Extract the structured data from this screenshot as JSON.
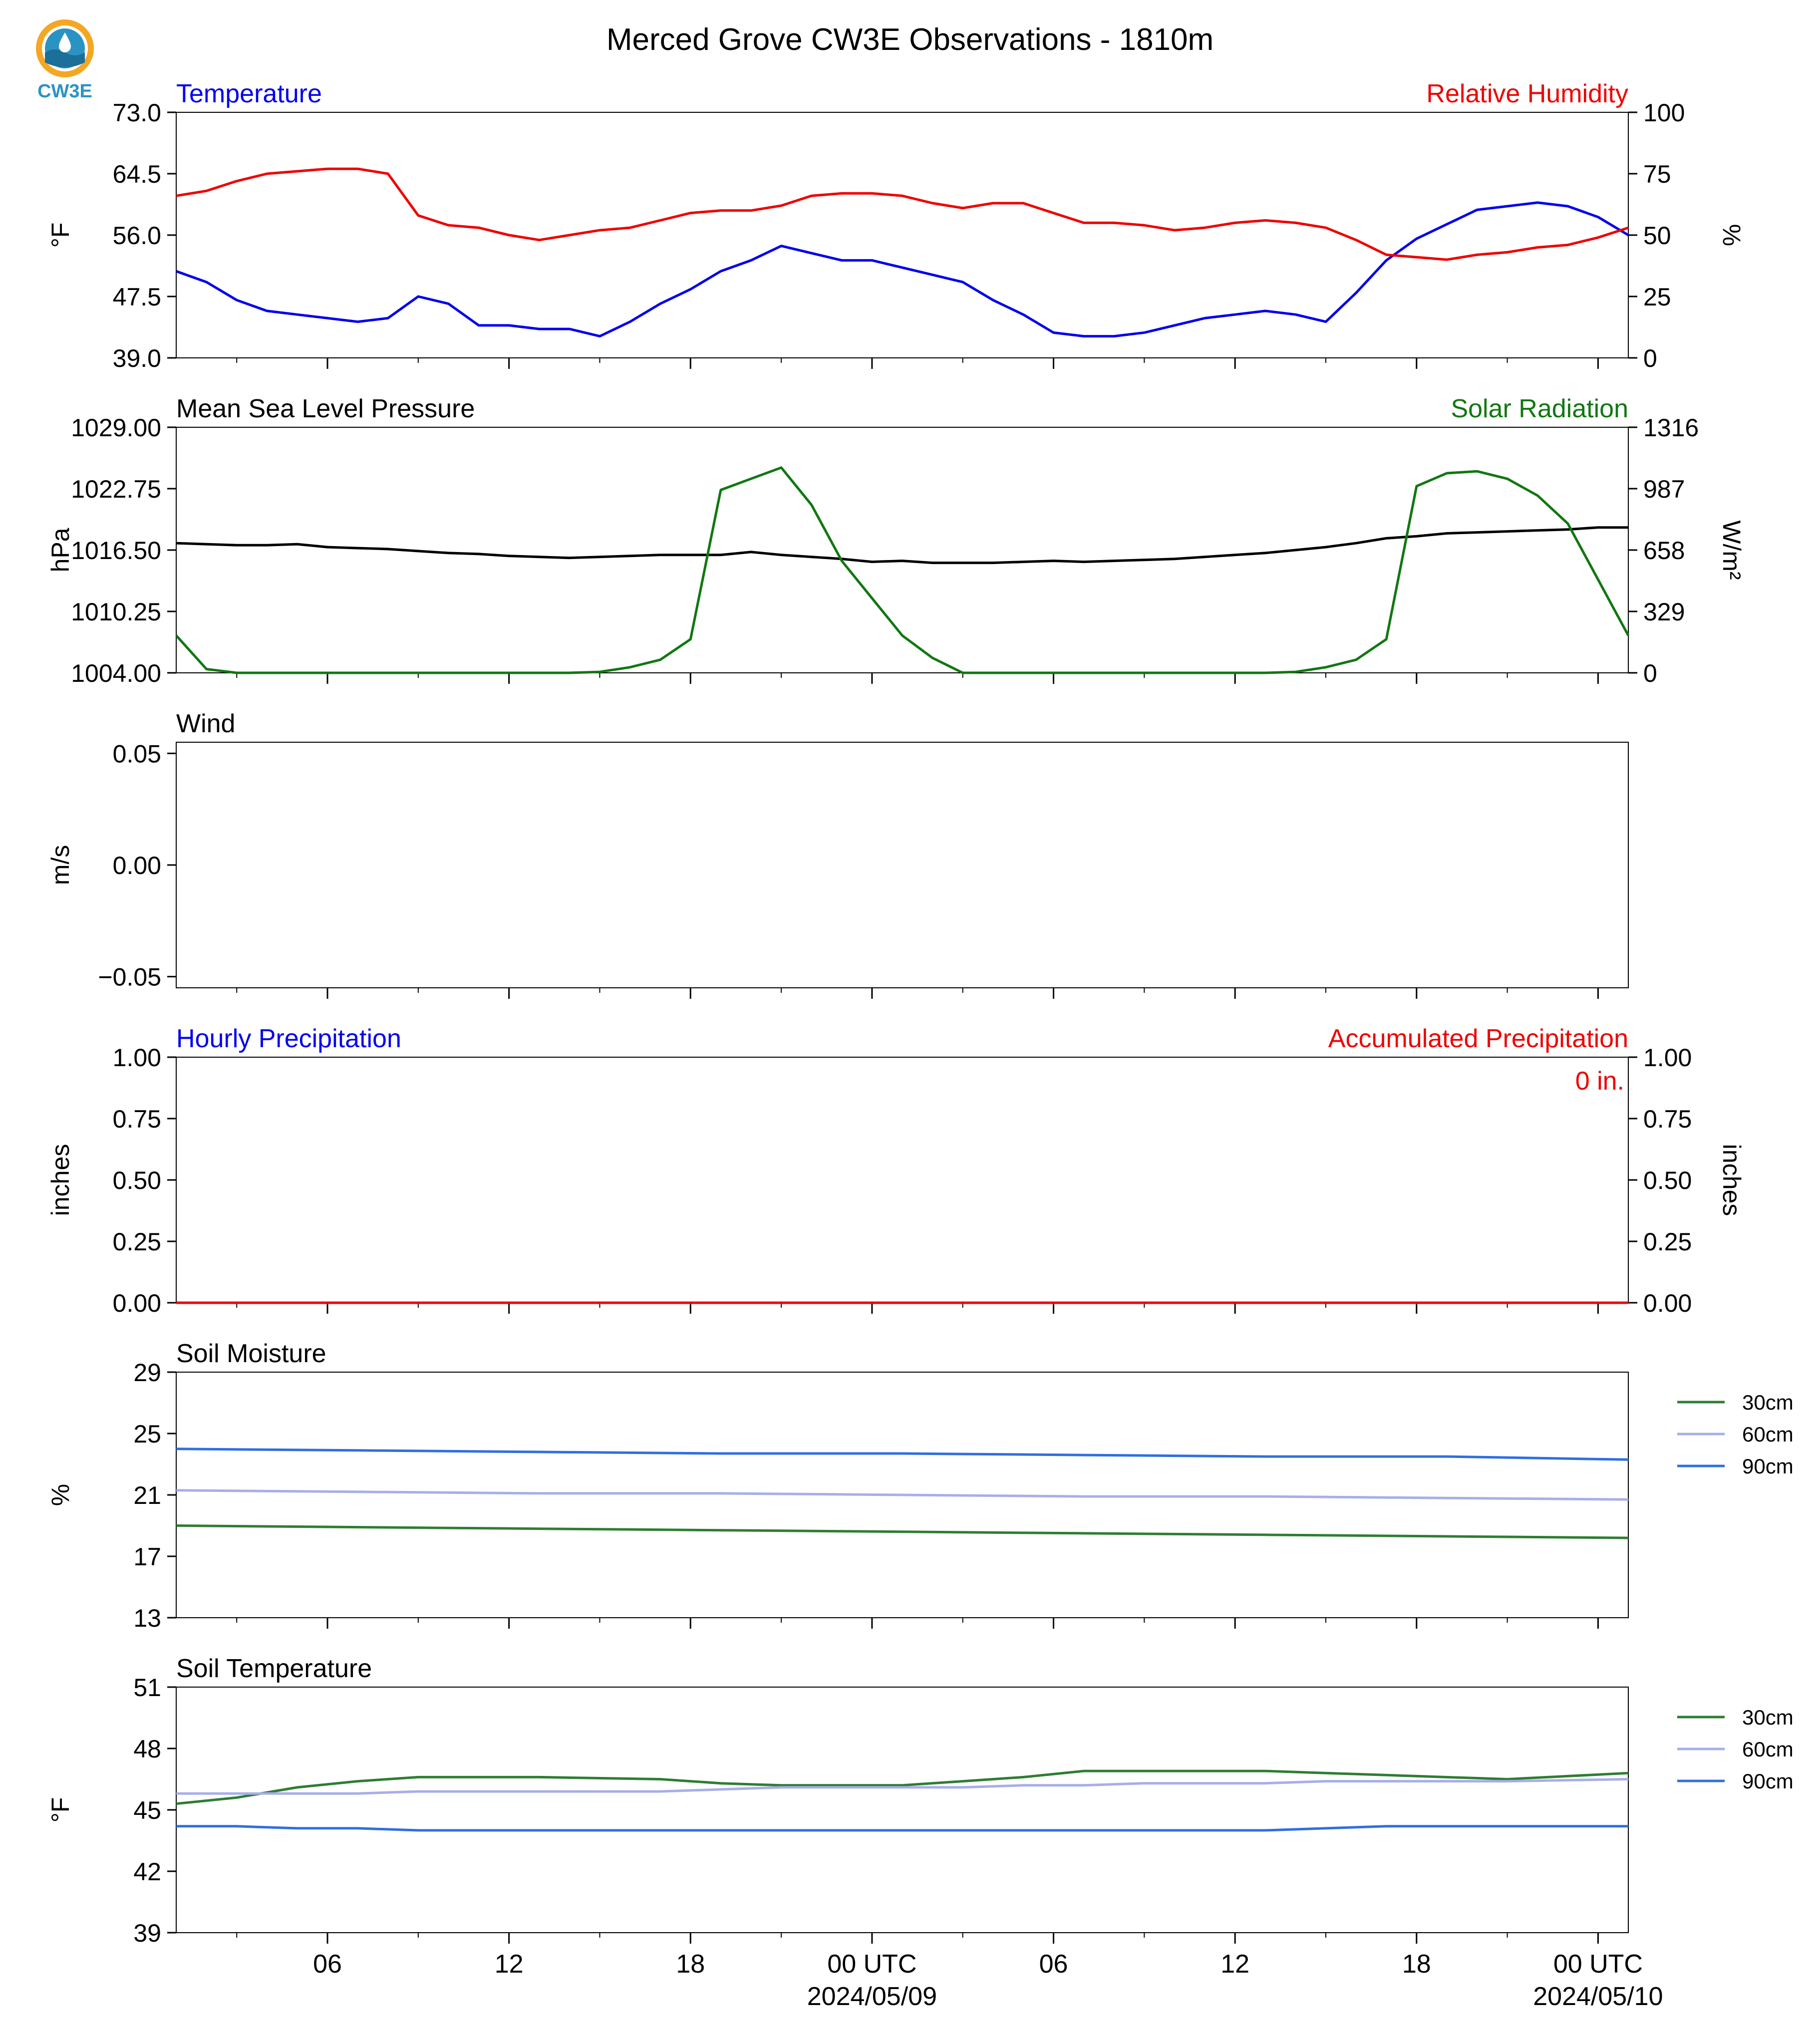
{
  "title": "Merced Grove CW3E Observations - 1810m",
  "logo_text": "CW3E",
  "x_axis": {
    "tick_labels": [
      "06",
      "12",
      "18",
      "00 UTC",
      "06",
      "12",
      "18",
      "00 UTC"
    ],
    "date_labels": [
      "2024/05/09",
      "2024/05/10"
    ],
    "start": "2024-05-08T01:00Z",
    "end": "2024-05-10T01:00Z"
  },
  "colors": {
    "blue": "#0000ee",
    "red": "#ee0000",
    "green": "#117711",
    "black": "#000000",
    "soil30": "#2e7d32",
    "soil60": "#a8aee8",
    "soil90": "#2f6fe0"
  },
  "chart_data": [
    {
      "type": "line",
      "name": "temperature-rh",
      "left_title": "Temperature",
      "right_title": "Relative Humidity",
      "ylabel": "°F",
      "ylabel_right": "%",
      "ylim": [
        39,
        73
      ],
      "yticks": [
        "39.0",
        "47.5",
        "56.0",
        "64.5",
        "73.0"
      ],
      "ylim_right": [
        0,
        100
      ],
      "yticks_right": [
        "0",
        "25",
        "50",
        "75",
        "100"
      ],
      "x_hours": [
        0,
        1,
        2,
        3,
        4,
        5,
        6,
        7,
        8,
        9,
        10,
        11,
        12,
        13,
        14,
        15,
        16,
        17,
        18,
        19,
        20,
        21,
        22,
        23,
        24,
        25,
        26,
        27,
        28,
        29,
        30,
        31,
        32,
        33,
        34,
        35,
        36,
        37,
        38,
        39,
        40,
        41,
        42,
        43,
        44,
        45,
        46,
        47,
        48
      ],
      "series": [
        {
          "label": "Temperature",
          "axis": "left",
          "color": "#0000ee",
          "values": [
            51.0,
            49.5,
            47.0,
            45.5,
            45.0,
            44.5,
            44.0,
            44.5,
            47.5,
            46.5,
            43.5,
            43.5,
            43.0,
            43.0,
            42.0,
            44.0,
            46.5,
            48.5,
            51.0,
            52.5,
            54.5,
            53.5,
            52.5,
            52.5,
            51.5,
            50.5,
            49.5,
            47.0,
            45.0,
            42.5,
            42.0,
            42.0,
            42.5,
            43.5,
            44.5,
            45.0,
            45.5,
            45.0,
            44.0,
            48.0,
            52.5,
            55.5,
            57.5,
            59.5,
            60.0,
            60.5,
            60.0,
            58.5,
            56.0
          ]
        },
        {
          "label": "Relative Humidity",
          "axis": "right",
          "color": "#ee0000",
          "values": [
            66,
            68,
            72,
            75,
            76,
            77,
            77,
            75,
            58,
            54,
            53,
            50,
            48,
            50,
            52,
            53,
            56,
            59,
            60,
            60,
            62,
            66,
            67,
            67,
            66,
            63,
            61,
            63,
            63,
            59,
            55,
            55,
            54,
            52,
            53,
            55,
            56,
            55,
            53,
            48,
            42,
            41,
            40,
            42,
            43,
            45,
            46,
            49,
            53
          ]
        }
      ]
    },
    {
      "type": "line",
      "name": "pressure-solar",
      "left_title": "Mean Sea Level Pressure",
      "right_title": "Solar Radiation",
      "ylabel": "hPa",
      "ylabel_right": "W/m²",
      "ylim": [
        1004.0,
        1029.0
      ],
      "yticks": [
        "1004.00",
        "1010.25",
        "1016.50",
        "1022.75",
        "1029.00"
      ],
      "ylim_right": [
        0,
        1316
      ],
      "yticks_right": [
        "0",
        "329",
        "658",
        "987",
        "1316"
      ],
      "x_hours": [
        0,
        1,
        2,
        3,
        4,
        5,
        6,
        7,
        8,
        9,
        10,
        11,
        12,
        13,
        14,
        15,
        16,
        17,
        18,
        19,
        20,
        21,
        22,
        23,
        24,
        25,
        26,
        27,
        28,
        29,
        30,
        31,
        32,
        33,
        34,
        35,
        36,
        37,
        38,
        39,
        40,
        41,
        42,
        43,
        44,
        45,
        46,
        47,
        48
      ],
      "series": [
        {
          "label": "Mean Sea Level Pressure",
          "axis": "left",
          "color": "#000000",
          "values": [
            1017.2,
            1017.1,
            1017.0,
            1017.0,
            1017.1,
            1016.8,
            1016.7,
            1016.6,
            1016.4,
            1016.2,
            1016.1,
            1015.9,
            1015.8,
            1015.7,
            1015.8,
            1015.9,
            1016.0,
            1016.0,
            1016.0,
            1016.3,
            1016.0,
            1015.8,
            1015.6,
            1015.3,
            1015.4,
            1015.2,
            1015.2,
            1015.2,
            1015.3,
            1015.4,
            1015.3,
            1015.4,
            1015.5,
            1015.6,
            1015.8,
            1016.0,
            1016.2,
            1016.5,
            1016.8,
            1017.2,
            1017.7,
            1017.9,
            1018.2,
            1018.3,
            1018.4,
            1018.5,
            1018.6,
            1018.8,
            1018.8
          ]
        },
        {
          "label": "Solar Radiation",
          "axis": "right",
          "color": "#117711",
          "values": [
            200,
            20,
            0,
            0,
            0,
            0,
            0,
            0,
            0,
            0,
            0,
            0,
            0,
            0,
            5,
            30,
            70,
            180,
            980,
            1040,
            1100,
            900,
            600,
            400,
            200,
            80,
            0,
            0,
            0,
            0,
            0,
            0,
            0,
            0,
            0,
            0,
            0,
            5,
            30,
            70,
            180,
            1000,
            1070,
            1080,
            1040,
            950,
            800,
            500,
            200
          ]
        }
      ]
    },
    {
      "type": "line",
      "name": "wind",
      "left_title": "Wind",
      "ylabel": "m/s",
      "ylim": [
        -0.055,
        0.055
      ],
      "yticks": [
        "−0.05",
        "0.00",
        "0.05"
      ],
      "series": []
    },
    {
      "type": "line",
      "name": "precipitation",
      "left_title": "Hourly Precipitation",
      "right_title": "Accumulated Precipitation",
      "annotation": "0 in.",
      "ylabel": "inches",
      "ylabel_right": "inches",
      "ylim": [
        0,
        1
      ],
      "yticks": [
        "0.00",
        "0.25",
        "0.50",
        "0.75",
        "1.00"
      ],
      "ylim_right": [
        0,
        1
      ],
      "yticks_right": [
        "0.00",
        "0.25",
        "0.50",
        "0.75",
        "1.00"
      ],
      "x_hours": [
        0,
        48
      ],
      "series": [
        {
          "label": "Hourly Precipitation",
          "axis": "left",
          "color": "#0000ee",
          "values": [
            0,
            0
          ]
        },
        {
          "label": "Accumulated Precipitation",
          "axis": "right",
          "color": "#ee0000",
          "values": [
            0,
            0
          ]
        }
      ]
    },
    {
      "type": "line",
      "name": "soil-moisture",
      "left_title": "Soil Moisture",
      "ylabel": "%",
      "ylim": [
        13,
        29
      ],
      "yticks": [
        "13",
        "17",
        "21",
        "25",
        "29"
      ],
      "legend_placement": "right",
      "x_hours": [
        0,
        6,
        12,
        18,
        24,
        30,
        36,
        42,
        48
      ],
      "series": [
        {
          "name": "30cm",
          "color": "#2e7d32",
          "values": [
            19.0,
            18.9,
            18.8,
            18.7,
            18.6,
            18.5,
            18.4,
            18.3,
            18.2
          ]
        },
        {
          "name": "60cm",
          "color": "#a8aee8",
          "values": [
            21.3,
            21.2,
            21.1,
            21.1,
            21.0,
            20.9,
            20.9,
            20.8,
            20.7
          ]
        },
        {
          "name": "90cm",
          "color": "#2f6fe0",
          "values": [
            24.0,
            23.9,
            23.8,
            23.7,
            23.7,
            23.6,
            23.5,
            23.5,
            23.3
          ]
        }
      ]
    },
    {
      "type": "line",
      "name": "soil-temperature",
      "left_title": "Soil Temperature",
      "ylabel": "°F",
      "ylim": [
        39,
        51
      ],
      "yticks": [
        "39",
        "42",
        "45",
        "48",
        "51"
      ],
      "legend_placement": "right",
      "x_hours": [
        0,
        2,
        4,
        6,
        8,
        12,
        16,
        18,
        20,
        24,
        26,
        28,
        30,
        32,
        36,
        38,
        40,
        44,
        48
      ],
      "series": [
        {
          "name": "30cm",
          "color": "#2e7d32",
          "values": [
            45.3,
            45.6,
            46.1,
            46.4,
            46.6,
            46.6,
            46.5,
            46.3,
            46.2,
            46.2,
            46.4,
            46.6,
            46.9,
            46.9,
            46.9,
            46.8,
            46.7,
            46.5,
            46.8
          ]
        },
        {
          "name": "60cm",
          "color": "#a8aee8",
          "values": [
            45.8,
            45.8,
            45.8,
            45.8,
            45.9,
            45.9,
            45.9,
            46.0,
            46.1,
            46.1,
            46.1,
            46.2,
            46.2,
            46.3,
            46.3,
            46.4,
            46.4,
            46.4,
            46.5
          ]
        },
        {
          "name": "90cm",
          "color": "#2f6fe0",
          "values": [
            44.2,
            44.2,
            44.1,
            44.1,
            44.0,
            44.0,
            44.0,
            44.0,
            44.0,
            44.0,
            44.0,
            44.0,
            44.0,
            44.0,
            44.0,
            44.1,
            44.2,
            44.2,
            44.2
          ]
        }
      ]
    }
  ]
}
